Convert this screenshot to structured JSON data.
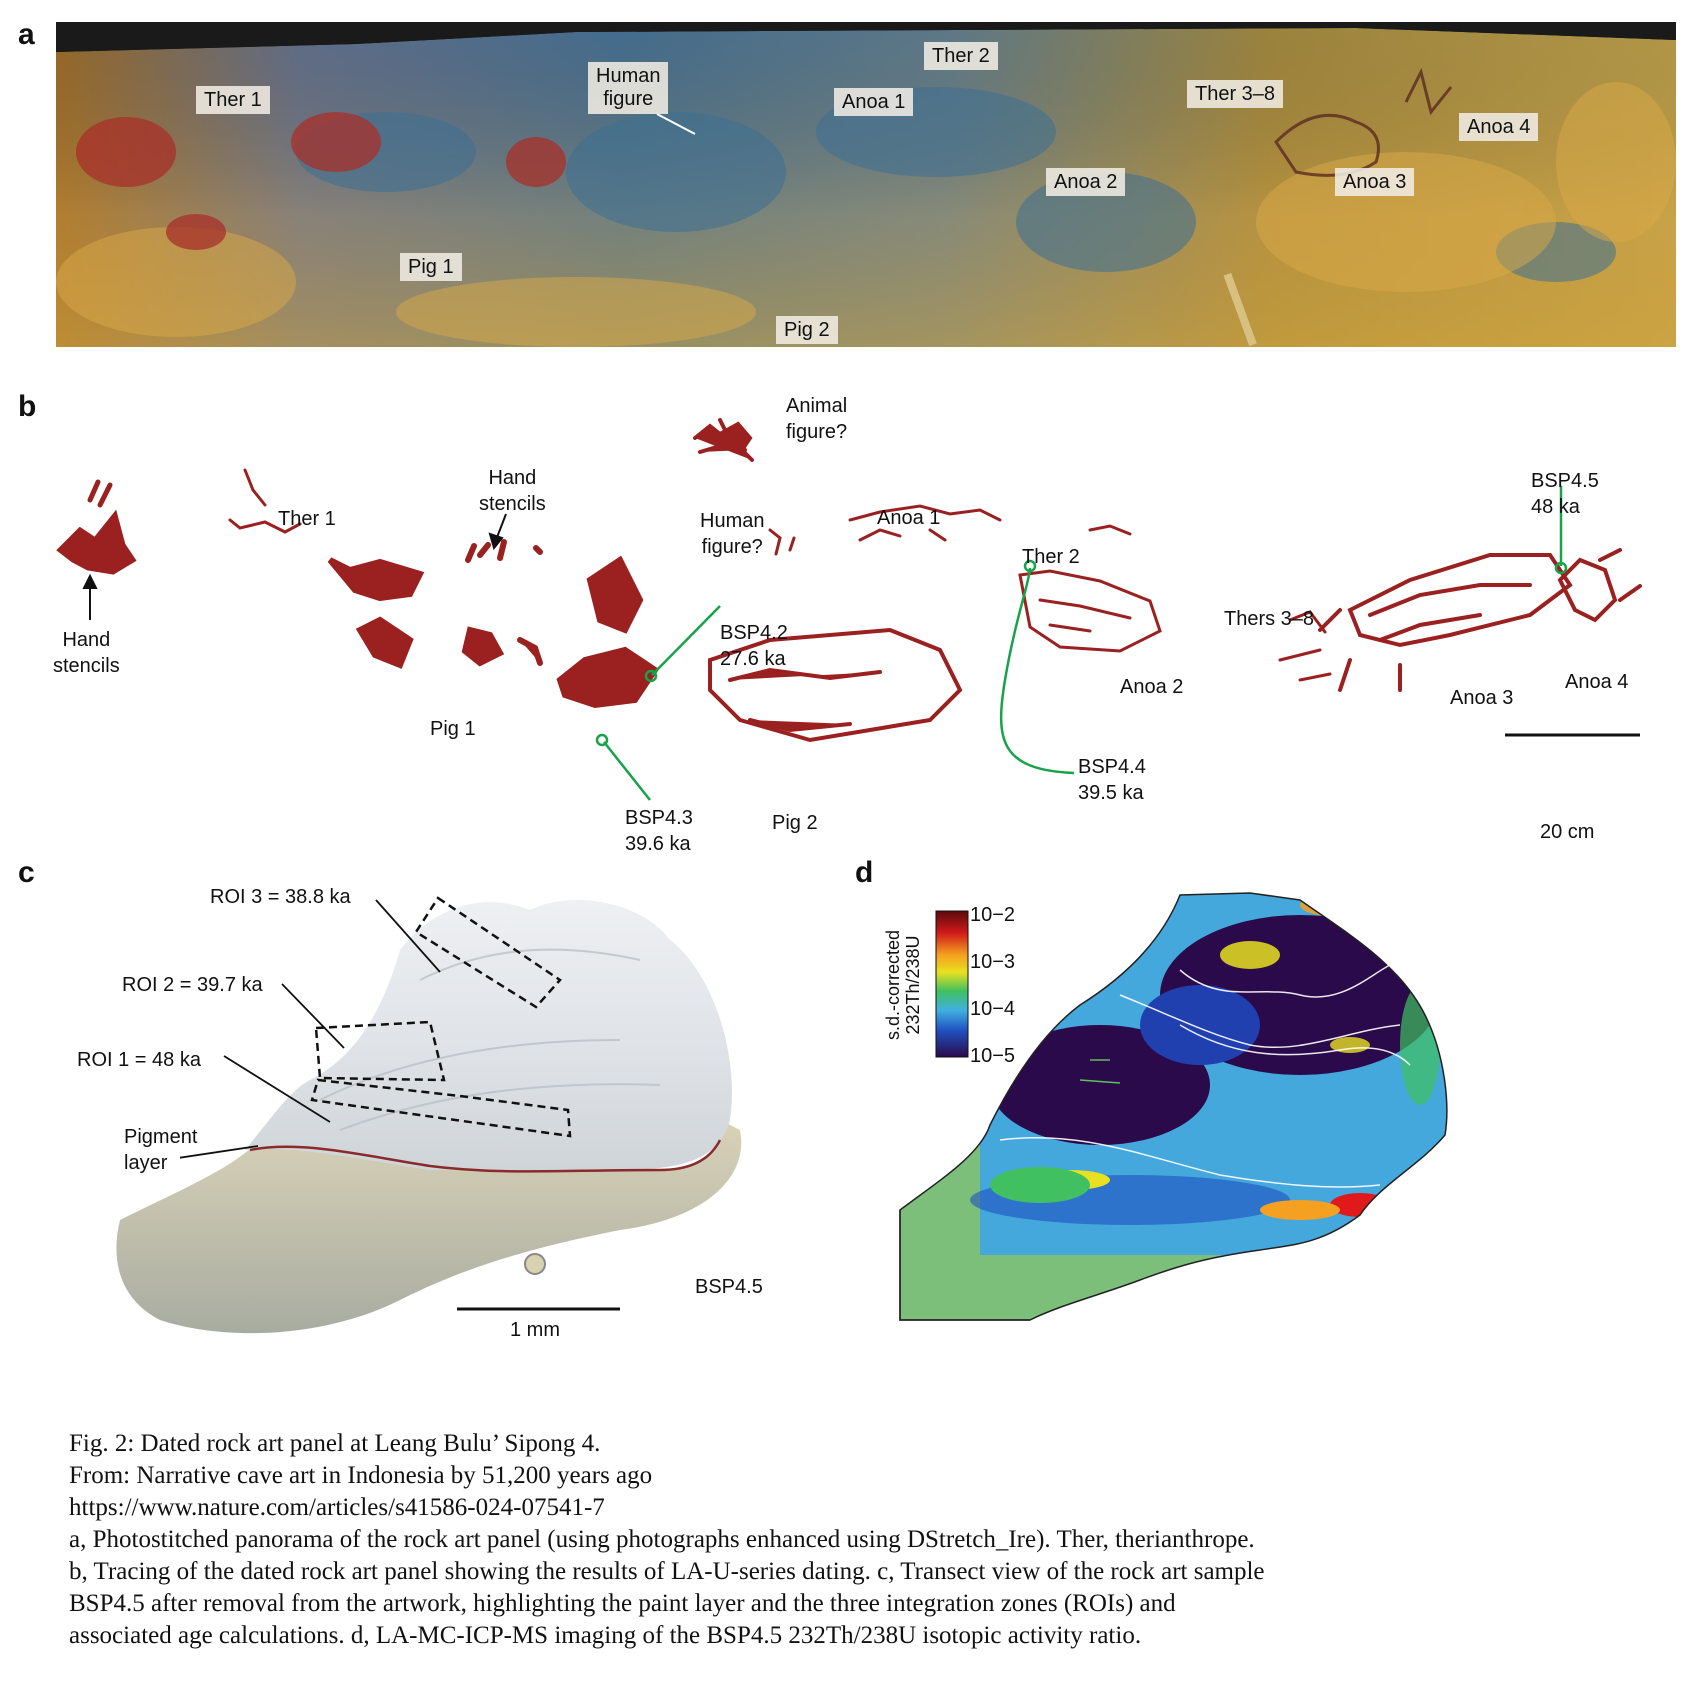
{
  "panel_a": {
    "letter": "a",
    "labels": {
      "ther1": "Ther 1",
      "human_line1": "Human",
      "human_line2": "figure",
      "anoa1": "Anoa 1",
      "ther2": "Ther 2",
      "ther38": "Ther 3–8",
      "anoa4": "Anoa 4",
      "anoa2": "Anoa 2",
      "anoa3": "Anoa 3",
      "pig1": "Pig 1",
      "pig2": "Pig 2"
    }
  },
  "panel_b": {
    "letter": "b",
    "labels": {
      "animal_line1": "Animal",
      "animal_line2": "figure?",
      "hand_left_line1": "Hand",
      "hand_left_line2": "stencils",
      "ther1": "Ther 1",
      "hand_mid_line1": "Hand",
      "hand_mid_line2": "stencils",
      "human_line1": "Human",
      "human_line2": "figure?",
      "anoa1": "Anoa 1",
      "ther2": "Ther 2",
      "bsp45_line1": "BSP4.5",
      "bsp45_line2": "48 ka",
      "thers38": "Thers 3–8",
      "bsp42_line1": "BSP4.2",
      "bsp42_line2": "27.6 ka",
      "pig1": "Pig 1",
      "anoa2": "Anoa 2",
      "anoa3": "Anoa 3",
      "anoa4": "Anoa 4",
      "bsp44_line1": "BSP4.4",
      "bsp44_line2": "39.5 ka",
      "bsp43_line1": "BSP4.3",
      "bsp43_line2": "39.6 ka",
      "pig2": "Pig 2",
      "scale": "20 cm"
    }
  },
  "panel_c": {
    "letter": "c",
    "labels": {
      "roi3": "ROI 3 = 38.8 ka",
      "roi2": "ROI 2 = 39.7 ka",
      "roi1": "ROI 1 = 48 ka",
      "pigment_line1": "Pigment",
      "pigment_line2": "layer",
      "sample": "BSP4.5",
      "scale": "1 mm"
    }
  },
  "panel_d": {
    "letter": "d",
    "colorbar": {
      "label_line1": "s.d.-corrected",
      "label_line2": "232Th/238U",
      "ticks": [
        "10−2",
        "10−3",
        "10−4",
        "10−5"
      ]
    }
  },
  "caption": {
    "title": "Fig. 2: Dated rock art panel at Leang Bulu’ Sipong 4.",
    "source": "From: Narrative cave art in Indonesia by 51,200 years ago",
    "url": "https://www.nature.com/articles/s41586-024-07541-7",
    "line1": "a, Photostitched panorama of the rock art panel (using photographs enhanced using DStretch_Ire). Ther, therianthrope.",
    "line2": "b, Tracing of the dated rock art panel showing the results of LA-U-series dating. c, Transect view of the rock art sample",
    "line3": "BSP4.5 after removal from the artwork, highlighting the paint layer and the three integration zones (ROIs) and",
    "line4": "associated age calculations. d, LA-MC-ICP-MS imaging of the BSP4.5 232Th/238U isotopic activity ratio."
  },
  "colors": {
    "pigment_red": "#9b2020",
    "sample_green": "#16a34a",
    "rock_blue": "#5a86a8",
    "rock_ochre": "#c8a040",
    "heatmap_bg": "#7bbf7b"
  }
}
